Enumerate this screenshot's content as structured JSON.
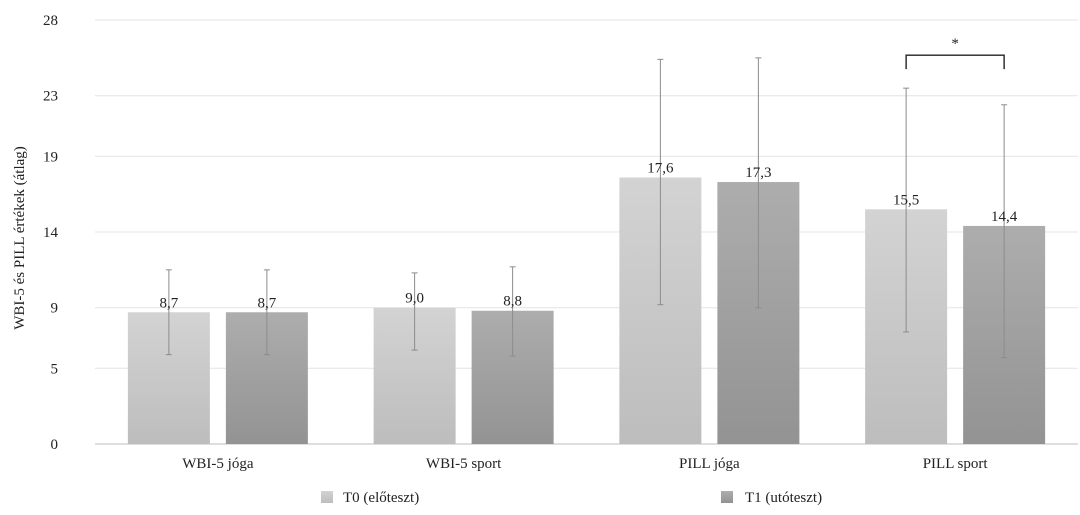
{
  "chart_data": {
    "type": "bar",
    "ylabel": "WBI-5 és PILL értékek (átlag)",
    "xlabel": "",
    "y_ticks": [
      0,
      5,
      9,
      14,
      19,
      23,
      28
    ],
    "ylim": [
      0,
      28
    ],
    "grid": true,
    "legend_position": "bottom",
    "categories": [
      "WBI-5 jóga",
      "WBI-5 sport",
      "PILL jóga",
      "PILL sport"
    ],
    "series": [
      {
        "name": "T0 (előteszt)",
        "color": "#c8c8c8",
        "values": [
          8.7,
          9.0,
          17.6,
          15.5
        ],
        "labels": [
          "8,7",
          "9,0",
          "17,6",
          "15,5"
        ],
        "err_low": [
          5.9,
          6.2,
          9.2,
          7.4
        ],
        "err_high": [
          11.5,
          11.3,
          25.4,
          23.5
        ]
      },
      {
        "name": "T1 (utóteszt)",
        "color": "#9c9c9c",
        "values": [
          8.7,
          8.8,
          17.3,
          14.4
        ],
        "labels": [
          "8,7",
          "8,8",
          "17,3",
          "14,4"
        ],
        "err_low": [
          5.9,
          5.8,
          9.0,
          5.7
        ],
        "err_high": [
          11.5,
          11.7,
          25.5,
          22.4
        ]
      }
    ],
    "annotations": [
      {
        "text": "*",
        "category": "PILL sport"
      }
    ]
  }
}
